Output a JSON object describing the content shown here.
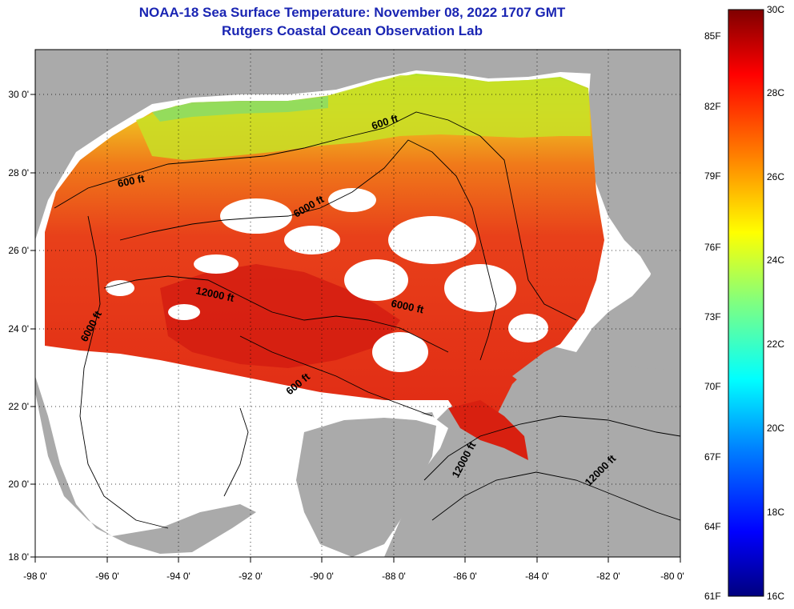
{
  "title": {
    "line1": "NOAA-18 Sea Surface Temperature:  November 08, 2022 1707 GMT",
    "line2": "Rutgers Coastal Ocean Observation Lab"
  },
  "map": {
    "lon_labels": [
      "-98 0'",
      "-96 0'",
      "-94 0'",
      "-92 0'",
      "-90 0'",
      "-88 0'",
      "-86 0'",
      "-84 0'",
      "-82 0'",
      "-80 0'"
    ],
    "lat_labels": [
      "30 0'",
      "28 0'",
      "26 0'",
      "24 0'",
      "22 0'",
      "20 0'",
      "18 0'"
    ],
    "lon_range": [
      -98,
      -80
    ],
    "lat_range": [
      18,
      31
    ],
    "contours": [
      "600 ft",
      "600 ft",
      "6000 ft",
      "6000 ft",
      "6000 ft",
      "12000 ft",
      "600 ft",
      "12000 ft",
      "12000 ft"
    ]
  },
  "colorbar": {
    "min_c": 16,
    "max_c": 30,
    "fahrenheit_labels": [
      "85F",
      "82F",
      "79F",
      "76F",
      "73F",
      "70F",
      "67F",
      "64F",
      "61F"
    ],
    "celsius_labels": [
      "30C",
      "28C",
      "26C",
      "24C",
      "22C",
      "20C",
      "18C",
      "16C"
    ],
    "colors": [
      "#00007f",
      "#0000ff",
      "#0080ff",
      "#00ffff",
      "#80ff80",
      "#ffff00",
      "#ff8000",
      "#ff0000",
      "#7f0000"
    ]
  },
  "palette": {
    "land": "#aaaaaa",
    "cloud": "#ffffff",
    "warm": "#e8341a",
    "hot": "#d81a12",
    "orange": "#f07a1a",
    "yellow": "#d8e224",
    "green": "#90e060",
    "title": "#1a25b3"
  }
}
